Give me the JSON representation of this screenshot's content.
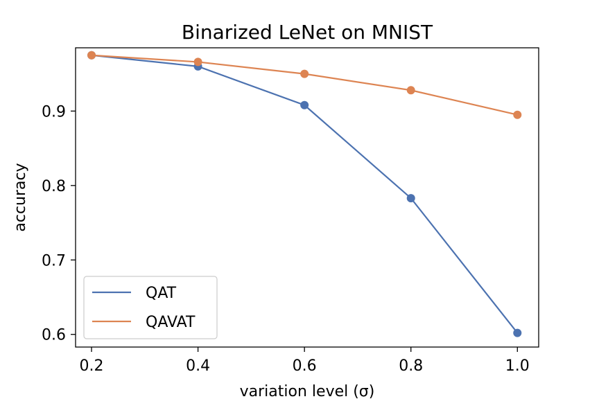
{
  "chart_data": {
    "type": "line",
    "title": "Binarized LeNet on MNIST",
    "xlabel": "variation level (σ)",
    "ylabel": "accuracy",
    "x": [
      0.2,
      0.4,
      0.6,
      0.8,
      1.0
    ],
    "xticks": [
      "0.2",
      "0.4",
      "0.6",
      "0.8",
      "1.0"
    ],
    "yticks": [
      "0.6",
      "0.7",
      "0.8",
      "0.9"
    ],
    "xlim": [
      0.17,
      1.04
    ],
    "ylim": [
      0.583,
      0.985
    ],
    "grid": false,
    "legend_position": "lower-left",
    "series": [
      {
        "name": "QAT",
        "color": "#4c72b0",
        "values": [
          0.975,
          0.96,
          0.908,
          0.783,
          0.602
        ]
      },
      {
        "name": "QAVAT",
        "color": "#dd8452",
        "values": [
          0.975,
          0.966,
          0.95,
          0.928,
          0.895
        ]
      }
    ]
  }
}
